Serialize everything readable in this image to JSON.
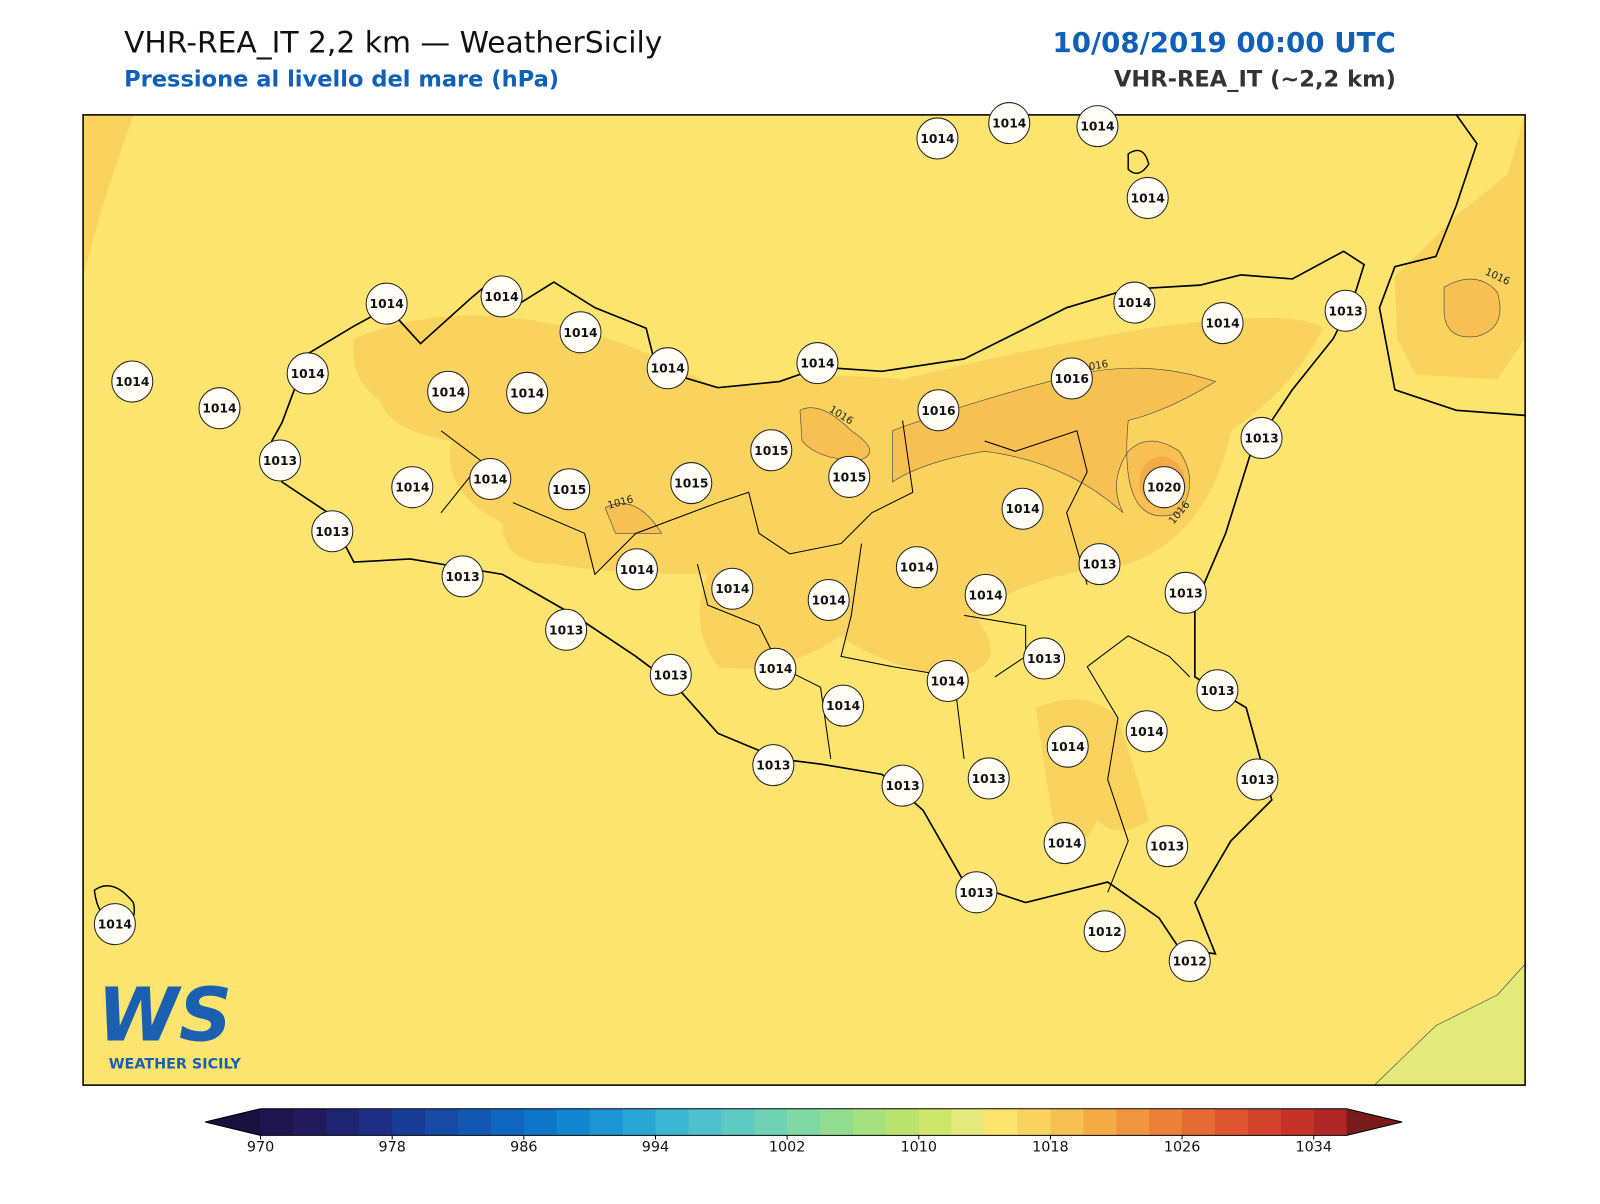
{
  "header": {
    "title": "VHR-REA_IT 2,2 km — WeatherSicily",
    "subtitle": "Pressione al livello del mare (hPa)",
    "datetime": "10/08/2019 00:00 UTC",
    "model": "VHR-REA_IT (~2,2 km)"
  },
  "stations": [
    1014,
    1014,
    1014,
    1014,
    1014,
    1014,
    1014,
    1014,
    1014,
    1014,
    1014,
    1014,
    1014,
    1014,
    1014,
    1014,
    1013,
    1016,
    1016,
    1015,
    1015,
    1015,
    1015,
    1014,
    1014,
    1013,
    1013,
    1013,
    1020,
    1014,
    1013,
    1013,
    1014,
    1014,
    1014,
    1014,
    1014,
    1013,
    1013,
    1013,
    1014,
    1013,
    1014,
    1014,
    1013,
    1014,
    1014,
    1013,
    1013,
    1013,
    1013,
    1014,
    1013,
    1013,
    1012,
    1012,
    1014
  ],
  "contour_labels": [
    1016,
    1016,
    1016,
    1016,
    1016
  ],
  "colorbar": {
    "range": [
      970,
      1036
    ],
    "ticks": [
      970,
      978,
      986,
      994,
      1002,
      1010,
      1018,
      1026,
      1034
    ],
    "colors": [
      "#1e1450",
      "#231a5e",
      "#1f2470",
      "#1c2f85",
      "#183c95",
      "#154aa5",
      "#1258b3",
      "#0f66bf",
      "#0d76c8",
      "#1185cf",
      "#1b95d3",
      "#28a6d6",
      "#3bb5d4",
      "#4ec1cd",
      "#5ecbc2",
      "#6fd2b3",
      "#80d8a2",
      "#92dc90",
      "#a5e17e",
      "#b9e36e",
      "#cfe66c",
      "#e3e97a",
      "#fce46e",
      "#fad25e",
      "#f7c052",
      "#f4ab46",
      "#f0963e",
      "#ec8038",
      "#e66a33",
      "#de562f",
      "#d2422c",
      "#c4332a",
      "#b02728"
    ],
    "under": "#1a1040",
    "over": "#7a1a1a"
  },
  "logo": {
    "mark": "WS",
    "text": "WEATHER SICILY"
  }
}
